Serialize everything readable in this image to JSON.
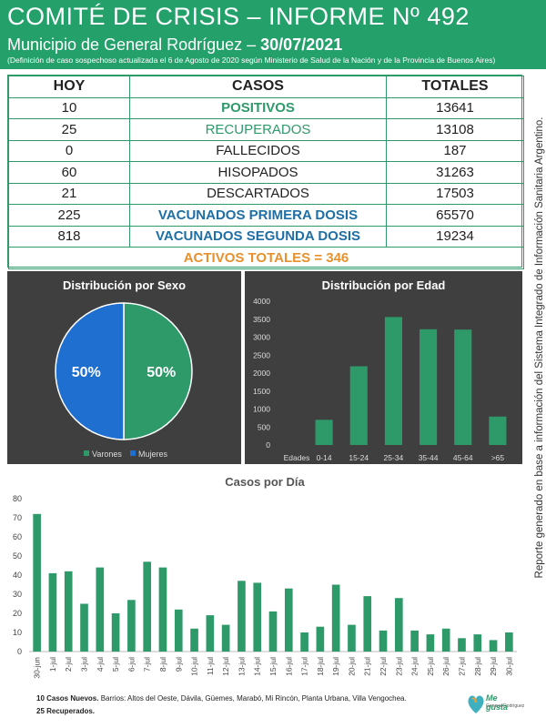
{
  "header": {
    "title": "COMITÉ DE CRISIS – INFORME Nº 492",
    "subtitle_prefix": "Municipio de General Rodríguez – ",
    "subtitle_date": "30/07/2021",
    "note": "(Definición de caso sospechoso actualizada el 6 de Agosto de 2020 según Ministerio de Salud de la Nación y de la Provincia de Buenos Aires)"
  },
  "table": {
    "headers": [
      "HOY",
      "CASOS",
      "TOTALES"
    ],
    "rows": [
      {
        "hoy": "10",
        "casos": "POSITIVOS",
        "totales": "13641"
      },
      {
        "hoy": "25",
        "casos": "RECUPERADOS",
        "totales": "13108"
      },
      {
        "hoy": "0",
        "casos": "FALLECIDOS",
        "totales": "187"
      },
      {
        "hoy": "60",
        "casos": "HISOPADOS",
        "totales": "31263"
      },
      {
        "hoy": "21",
        "casos": "DESCARTADOS",
        "totales": "17503"
      },
      {
        "hoy": "225",
        "casos": "VACUNADOS PRIMERA DOSIS",
        "totales": "65570"
      },
      {
        "hoy": "818",
        "casos": "VACUNADOS SEGUNDA DOSIS",
        "totales": "19234"
      }
    ],
    "activos": "ACTIVOS TOTALES = 346"
  },
  "side_note": "Reporte generado en base a información del Sistema Integrado de Información Sanitaria Argentino.",
  "colors": {
    "header_bg": "#24a06b",
    "bar": "#2e9a6a",
    "pie_varones": "#2e9a6a",
    "pie_mujeres": "#1e6fd0",
    "panel_bg": "#3f3f3f",
    "orange": "#e8912c",
    "blue": "#1e6fa6"
  },
  "chart_data": [
    {
      "type": "pie",
      "title": "Distribución por Sexo",
      "labels": [
        "Varones",
        "Mujeres"
      ],
      "values": [
        50,
        50
      ],
      "data_labels": [
        "50%",
        "50%"
      ],
      "legend": "bottom"
    },
    {
      "type": "bar",
      "title": "Distribución por Edad",
      "xlabel": "Edades",
      "categories": [
        "0-14",
        "15-24",
        "25-34",
        "35-44",
        "45-64",
        ">65"
      ],
      "values": [
        700,
        2190,
        3560,
        3220,
        3210,
        790
      ],
      "ylim": [
        0,
        4000
      ],
      "yticks": [
        0,
        500,
        1000,
        1500,
        2000,
        2500,
        3000,
        3500,
        4000
      ],
      "grid": false
    },
    {
      "type": "bar",
      "title": "Casos por Día",
      "categories": [
        "30-jun",
        "1-jul",
        "2-jul",
        "3-jul",
        "4-jul",
        "5-jul",
        "6-jul",
        "7-jul",
        "8-jul",
        "9-jul",
        "10-jul",
        "11-jul",
        "12-jul",
        "13-jul",
        "14-jul",
        "15-jul",
        "16-jul",
        "17-jul",
        "18-jul",
        "19-jul",
        "20-jul",
        "21-jul",
        "22-jul",
        "23-jul",
        "24-jul",
        "25-jul",
        "26-jul",
        "27-jul",
        "28-jul",
        "29-jul",
        "30-jul"
      ],
      "values": [
        72,
        41,
        42,
        25,
        44,
        20,
        27,
        47,
        44,
        22,
        12,
        19,
        14,
        37,
        36,
        21,
        33,
        10,
        13,
        35,
        14,
        29,
        11,
        28,
        11,
        9,
        12,
        7,
        9,
        6,
        10
      ],
      "ylim": [
        0,
        80
      ],
      "yticks": [
        0,
        10,
        20,
        30,
        40,
        50,
        60,
        70,
        80
      ],
      "grid": false
    }
  ],
  "footer": {
    "line1_bold": "10 Casos Nuevos.",
    "line1_rest": " Barrios: Altos del Oeste, Dávila, Güemes, Marabó, Mi Rincón, Planta Urbana, Villa Vengochea.",
    "line2": "25 Recuperados."
  },
  "logo": {
    "text": "Me gusta",
    "sub": "General Rodríguez"
  }
}
